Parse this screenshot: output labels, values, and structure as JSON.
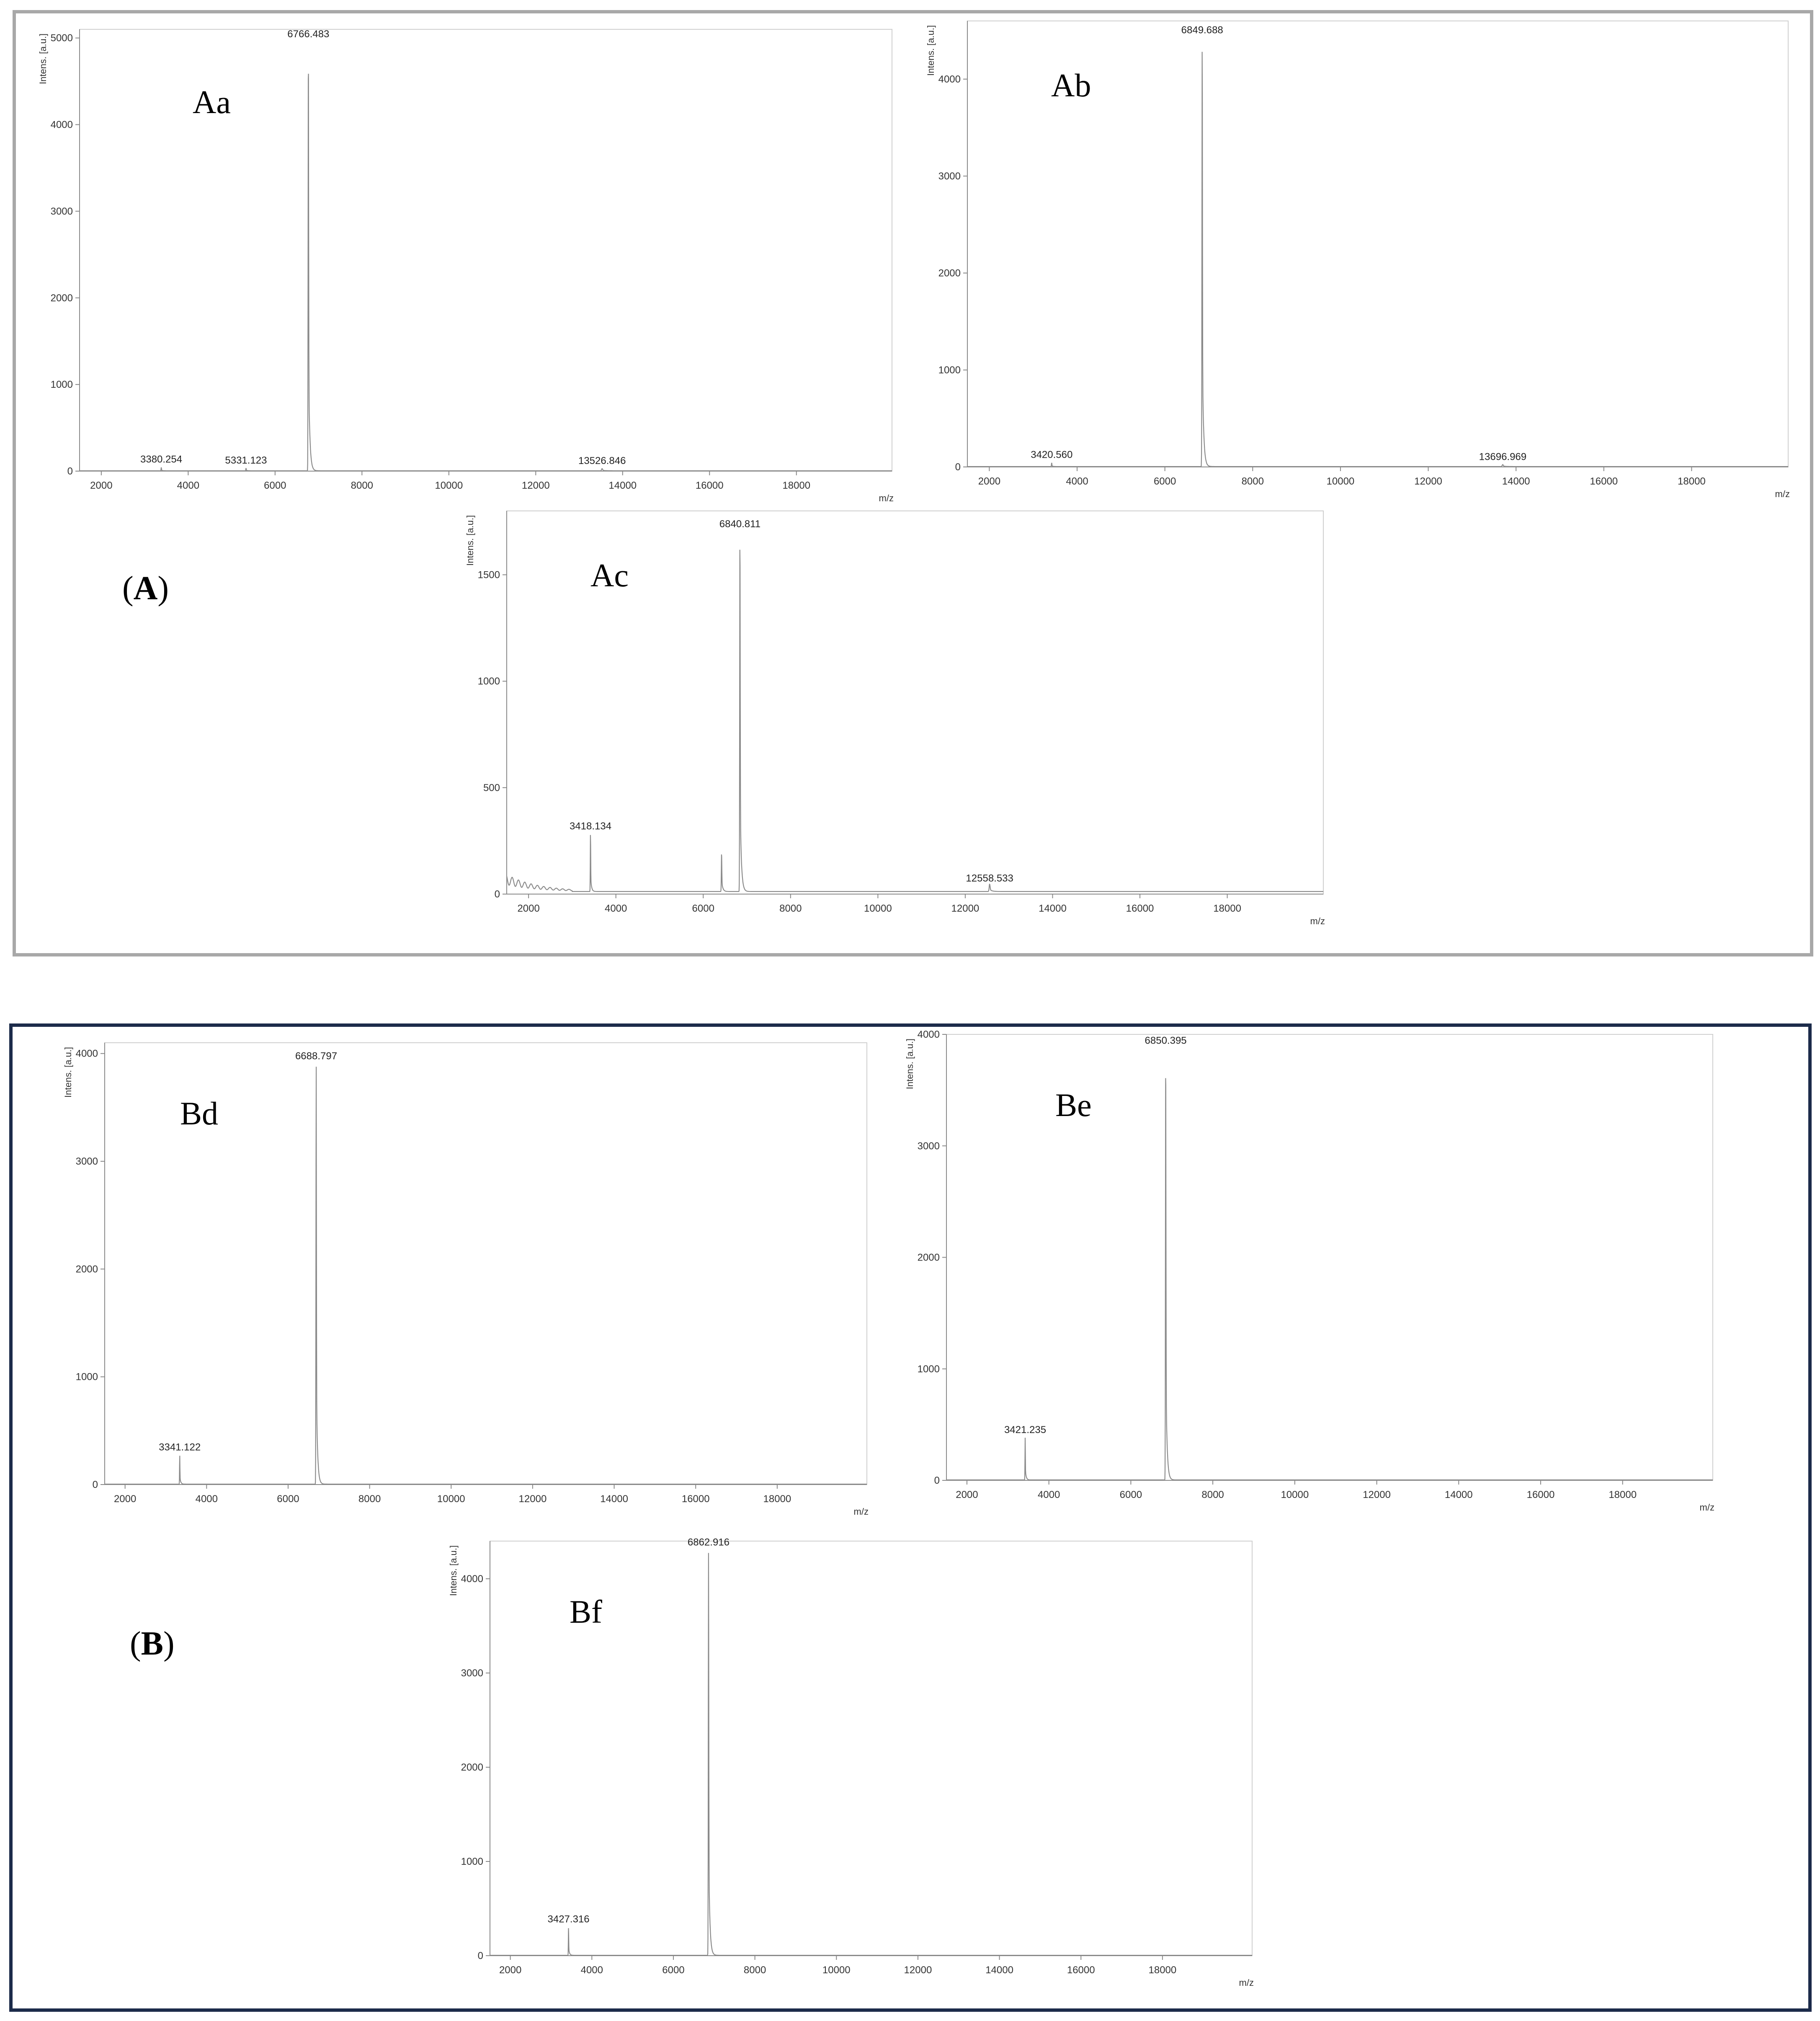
{
  "groups": {
    "a": {
      "label": "A",
      "border_color": "#a8a8a8"
    },
    "b": {
      "label": "B",
      "border_color": "#1c2b4a"
    }
  },
  "chart_data": [
    {
      "id": "Aa",
      "type": "line",
      "panel_label": "Aa",
      "xlabel": "m/z",
      "ylabel": "Intens. [a.u.]",
      "xlim": [
        1500,
        20200
      ],
      "ylim": [
        0,
        5100
      ],
      "xticks": [
        2000,
        4000,
        6000,
        8000,
        10000,
        12000,
        14000,
        16000,
        18000
      ],
      "yticks": [
        0,
        1000,
        2000,
        3000,
        4000,
        5000
      ],
      "peaks": [
        {
          "x": 3380.254,
          "y": 40,
          "label": "3380.254"
        },
        {
          "x": 5331.123,
          "y": 30,
          "label": "5331.123"
        },
        {
          "x": 6766.483,
          "y": 4950,
          "label": "6766.483"
        },
        {
          "x": 13526.846,
          "y": 25,
          "label": "13526.846"
        }
      ]
    },
    {
      "id": "Ab",
      "type": "line",
      "panel_label": "Ab",
      "xlabel": "m/z",
      "ylabel": "Intens. [a.u.]",
      "xlim": [
        1500,
        20200
      ],
      "ylim": [
        0,
        4600
      ],
      "xticks": [
        2000,
        4000,
        6000,
        8000,
        10000,
        12000,
        14000,
        16000,
        18000
      ],
      "yticks": [
        0,
        1000,
        2000,
        3000,
        4000
      ],
      "peaks": [
        {
          "x": 3420.56,
          "y": 40,
          "label": "3420.560"
        },
        {
          "x": 6849.688,
          "y": 4420,
          "label": "6849.688"
        },
        {
          "x": 13696.969,
          "y": 20,
          "label": "13696.969"
        }
      ]
    },
    {
      "id": "Ac",
      "type": "line",
      "panel_label": "Ac",
      "xlabel": "m/z",
      "ylabel": "Intens. [a.u.]",
      "xlim": [
        1500,
        20200
      ],
      "ylim": [
        0,
        1800
      ],
      "xticks": [
        2000,
        4000,
        6000,
        8000,
        10000,
        12000,
        14000,
        16000,
        18000
      ],
      "yticks": [
        0,
        500,
        1000,
        1500
      ],
      "peaks": [
        {
          "x": 3418.134,
          "y": 280,
          "label": "3418.134"
        },
        {
          "x": 6420,
          "y": 185,
          "label": ""
        },
        {
          "x": 6840.811,
          "y": 1700,
          "label": "6840.811"
        },
        {
          "x": 12558.533,
          "y": 35,
          "label": "12558.533"
        }
      ]
    },
    {
      "id": "Bd",
      "type": "line",
      "panel_label": "Bd",
      "xlabel": "m/z",
      "ylabel": "Intens. [a.u.]",
      "xlim": [
        1500,
        20200
      ],
      "ylim": [
        0,
        4100
      ],
      "xticks": [
        2000,
        4000,
        6000,
        8000,
        10000,
        12000,
        14000,
        16000,
        18000
      ],
      "yticks": [
        0,
        1000,
        2000,
        3000,
        4000
      ],
      "peaks": [
        {
          "x": 3341.122,
          "y": 270,
          "label": "3341.122"
        },
        {
          "x": 6688.797,
          "y": 3900,
          "label": "6688.797"
        }
      ]
    },
    {
      "id": "Be",
      "type": "line",
      "panel_label": "Be",
      "xlabel": "m/z",
      "ylabel": "Intens. [a.u.]",
      "xlim": [
        1500,
        20200
      ],
      "ylim": [
        0,
        4000
      ],
      "xticks": [
        2000,
        4000,
        6000,
        8000,
        10000,
        12000,
        14000,
        16000,
        18000
      ],
      "yticks": [
        0,
        1000,
        2000,
        3000,
        4000
      ],
      "peaks": [
        {
          "x": 3421.235,
          "y": 380,
          "label": "3421.235"
        },
        {
          "x": 6850.395,
          "y": 3870,
          "label": "6850.395"
        }
      ]
    },
    {
      "id": "Bf",
      "type": "line",
      "panel_label": "Bf",
      "xlabel": "m/z",
      "ylabel": "Intens. [a.u.]",
      "xlim": [
        1500,
        20200
      ],
      "ylim": [
        0,
        4400
      ],
      "xticks": [
        2000,
        4000,
        6000,
        8000,
        10000,
        12000,
        14000,
        16000,
        18000
      ],
      "yticks": [
        0,
        1000,
        2000,
        3000,
        4000
      ],
      "peaks": [
        {
          "x": 3427.316,
          "y": 300,
          "label": "3427.316"
        },
        {
          "x": 6862.916,
          "y": 4300,
          "label": "6862.916"
        }
      ]
    }
  ]
}
